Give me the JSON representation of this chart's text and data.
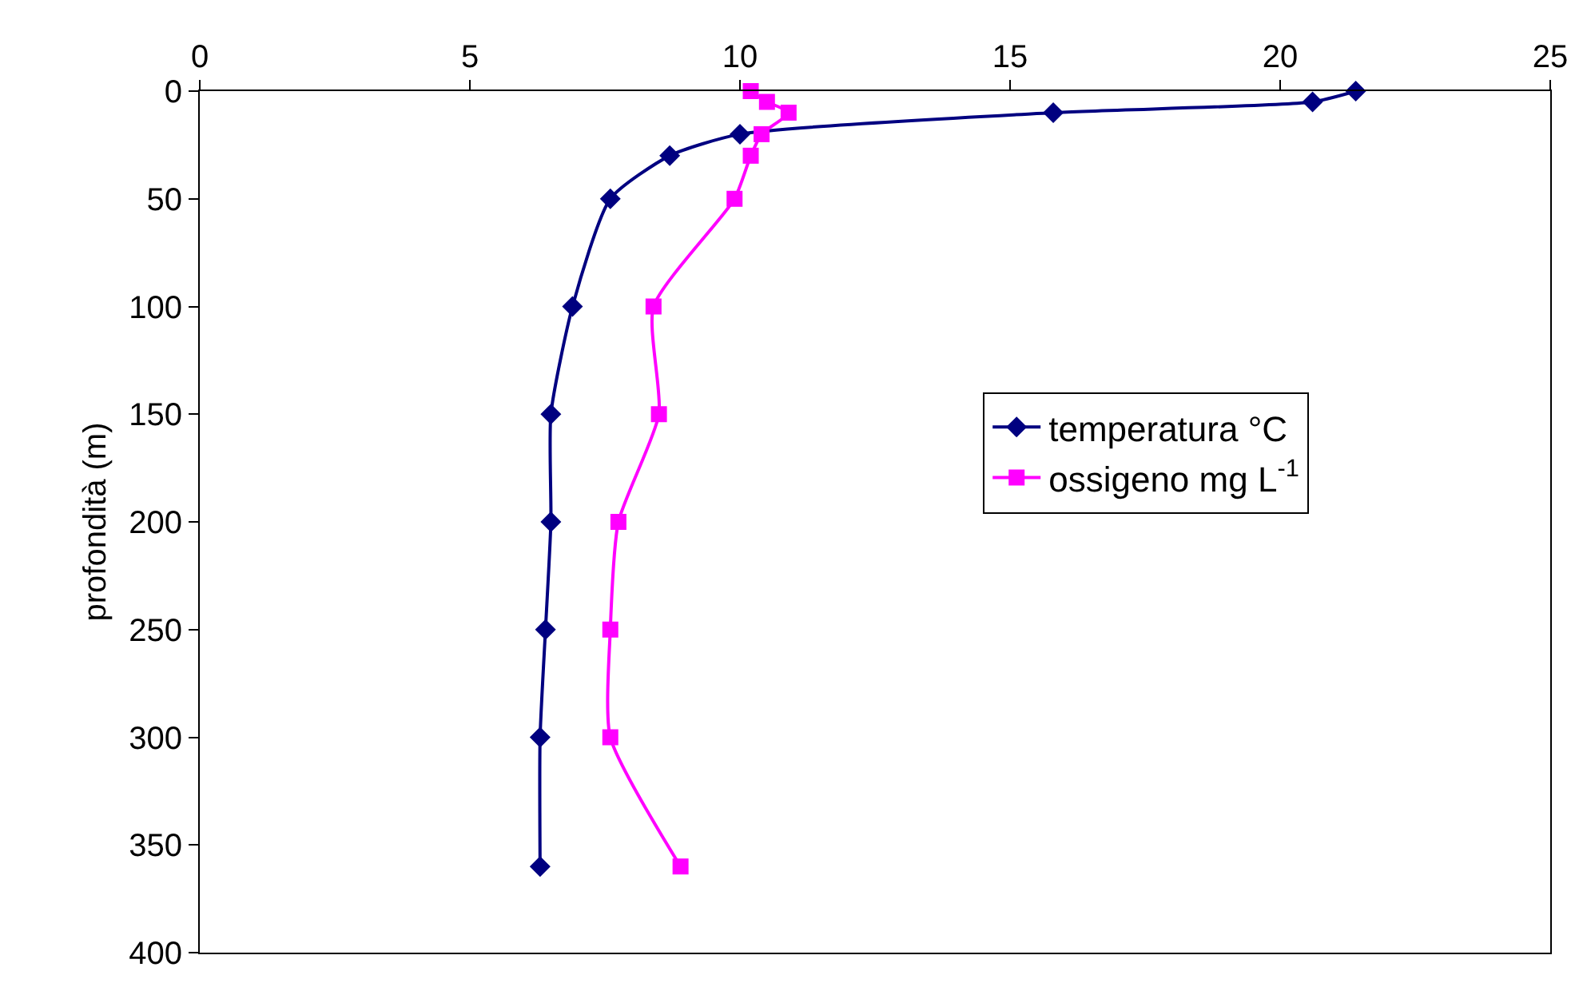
{
  "chart_data": {
    "type": "line",
    "ylabel": "profondità (m)",
    "xlim": [
      0,
      25
    ],
    "xticks": [
      0,
      5,
      10,
      15,
      20,
      25
    ],
    "ylim": [
      400,
      0
    ],
    "yticks": [
      0,
      50,
      100,
      150,
      200,
      250,
      300,
      350,
      400
    ],
    "grid": false,
    "legend": "right",
    "line_style": "solid",
    "series": [
      {
        "name": "temperatura °C",
        "color": "#000080",
        "marker": "diamond",
        "x": [
          21.4,
          20.6,
          15.8,
          10.0,
          8.7,
          7.6,
          6.9,
          6.5,
          6.5,
          6.4,
          6.3,
          6.3
        ],
        "values": [
          0,
          5,
          10,
          20,
          30,
          50,
          100,
          150,
          200,
          250,
          300,
          360
        ]
      },
      {
        "name": "ossigeno mg L$^{-1}$",
        "color": "#ff00ff",
        "marker": "square",
        "x": [
          10.2,
          10.5,
          10.9,
          10.4,
          10.2,
          9.9,
          8.4,
          8.5,
          7.75,
          7.6,
          7.6,
          8.9
        ],
        "values": [
          0,
          5,
          10,
          20,
          30,
          50,
          100,
          150,
          200,
          250,
          300,
          360
        ]
      }
    ]
  }
}
